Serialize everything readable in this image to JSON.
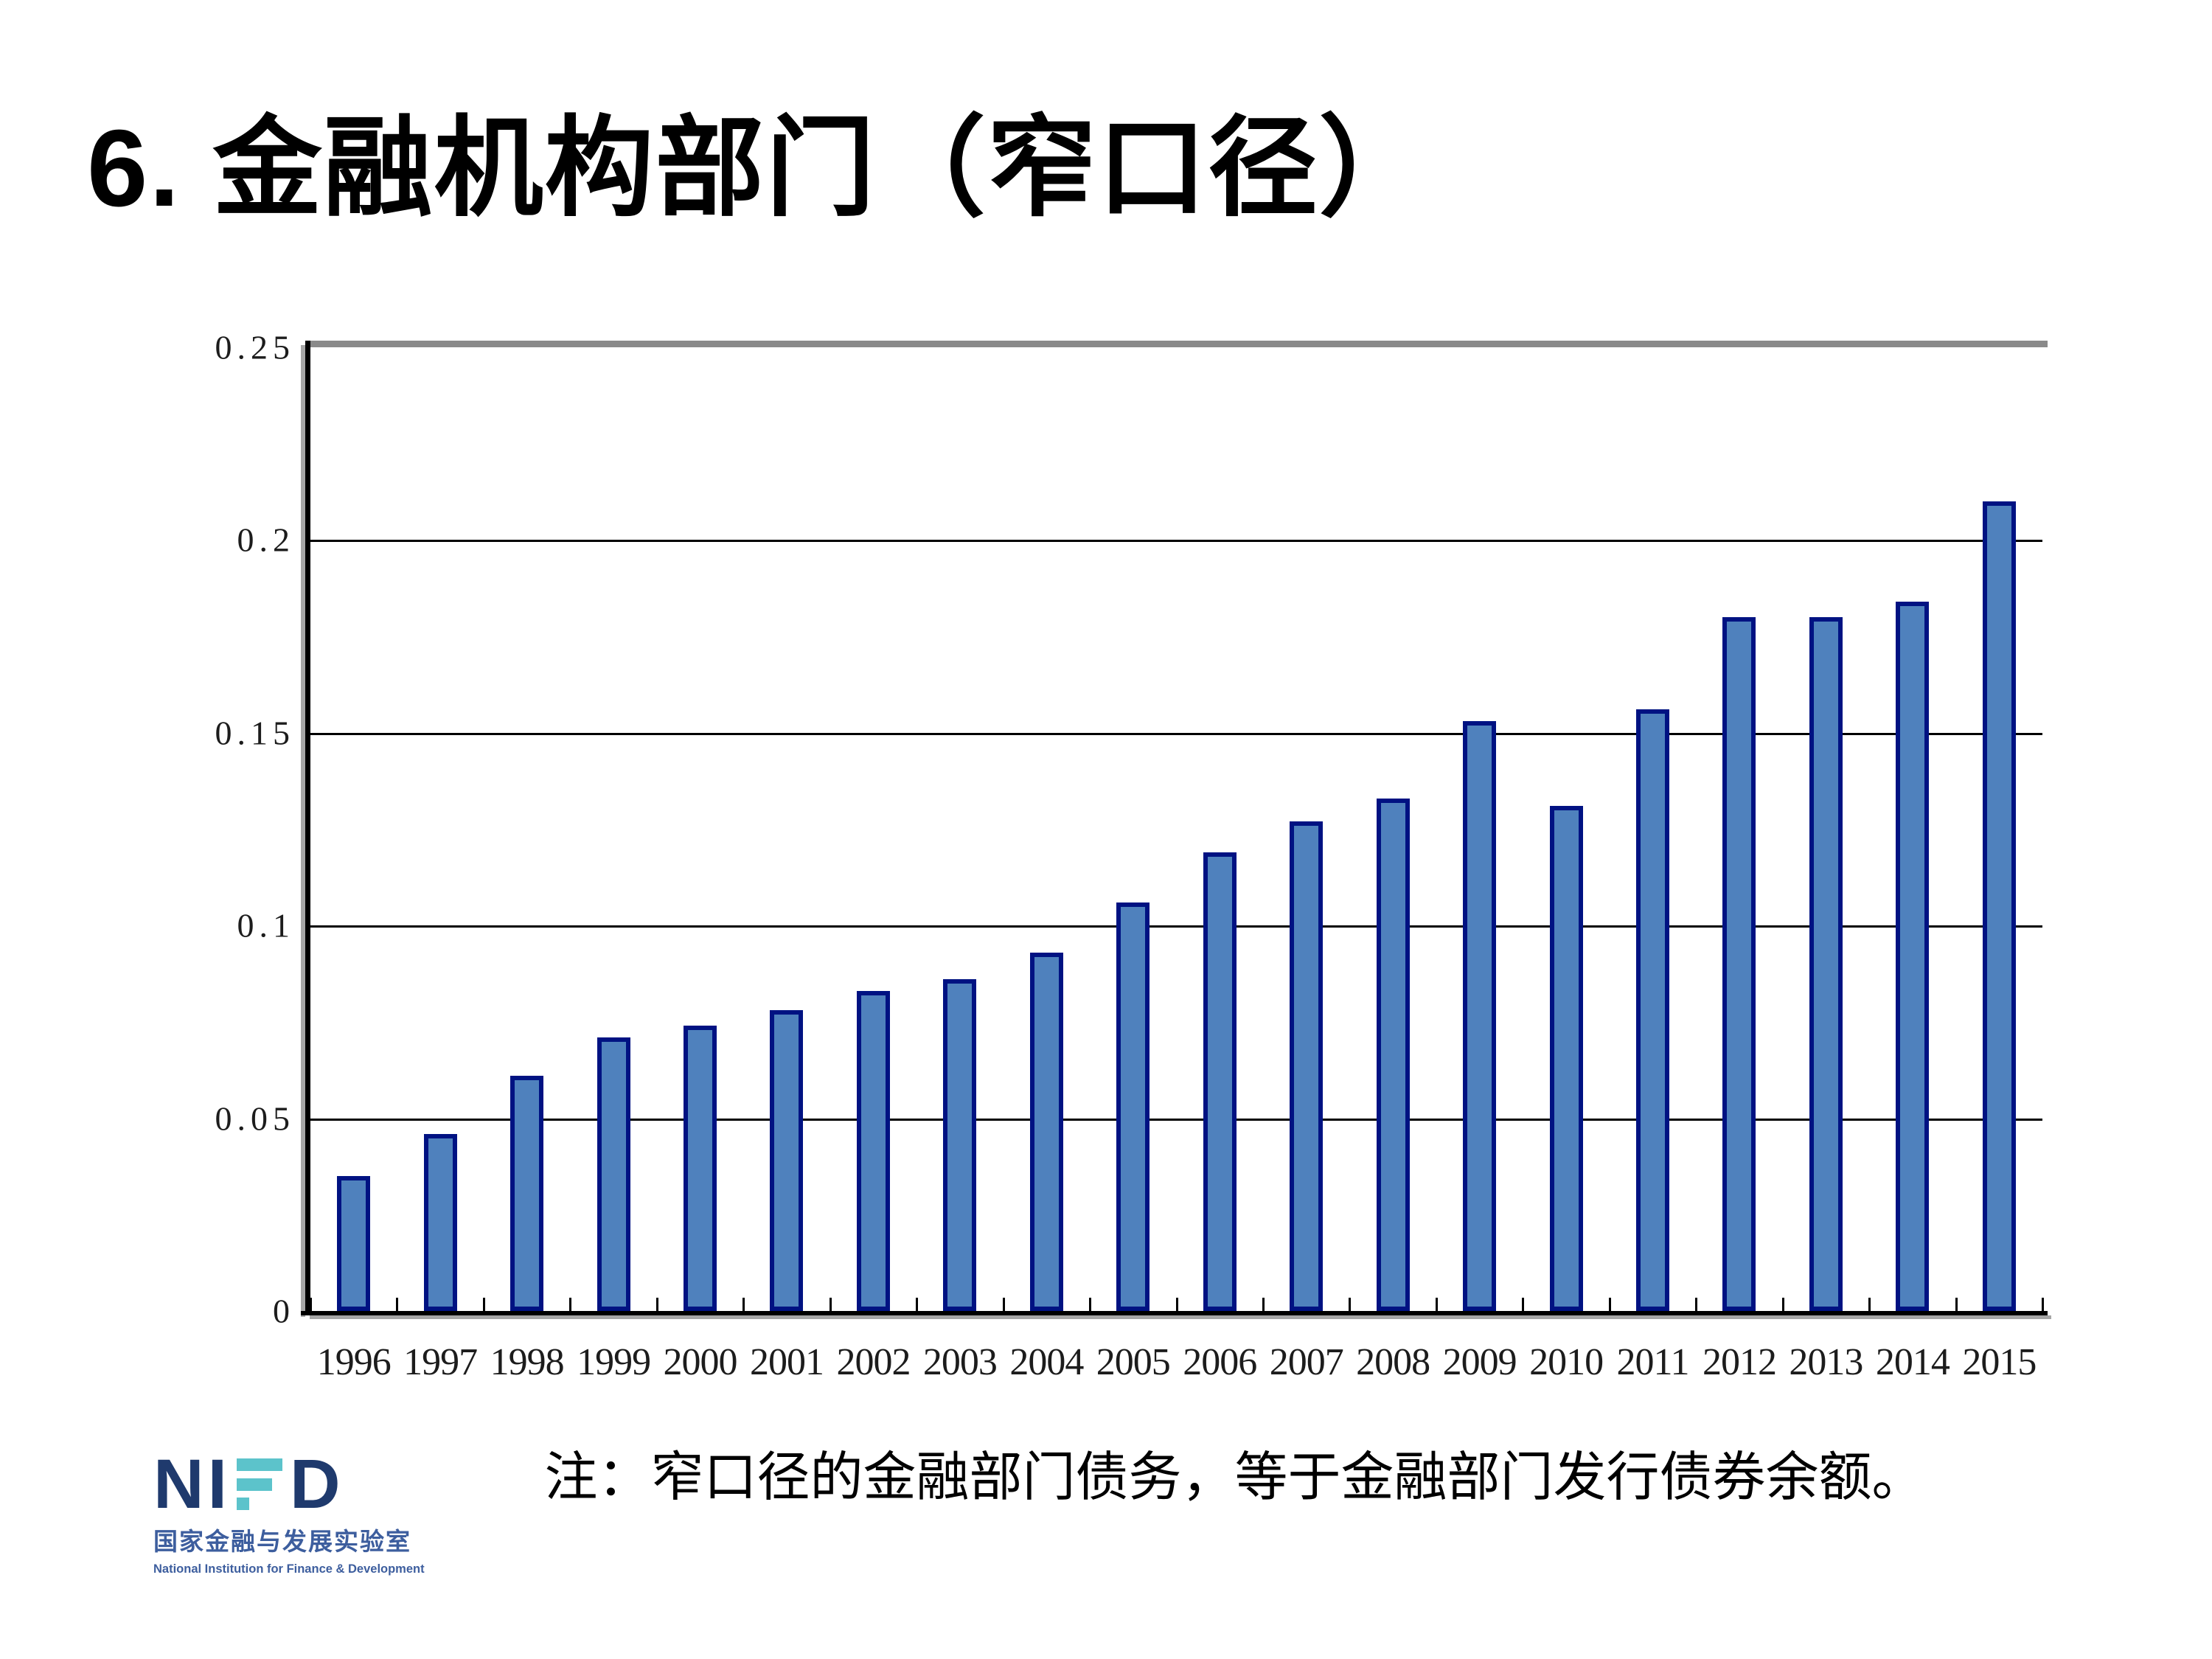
{
  "slide": {
    "title": "6. 金融机构部门（窄口径）",
    "note": "注：窄口径的金融部门债务，等于金融部门发行债券余额。"
  },
  "chart_data": {
    "type": "bar",
    "title": "",
    "xlabel": "",
    "ylabel": "",
    "categories": [
      "1996",
      "1997",
      "1998",
      "1999",
      "2000",
      "2001",
      "2002",
      "2003",
      "2004",
      "2005",
      "2006",
      "2007",
      "2008",
      "2009",
      "2010",
      "2011",
      "2012",
      "2013",
      "2014",
      "2015"
    ],
    "values": [
      0.035,
      0.046,
      0.061,
      0.071,
      0.074,
      0.078,
      0.083,
      0.086,
      0.093,
      0.106,
      0.119,
      0.127,
      0.133,
      0.153,
      0.131,
      0.156,
      0.18,
      0.18,
      0.184,
      0.21
    ],
    "ylim": [
      0,
      0.25
    ],
    "y_ticks": [
      0.25,
      0.2,
      0.15,
      0.1,
      0.05,
      0
    ],
    "y_tick_labels": [
      "0.25",
      "0.2",
      "0.15",
      "0.1",
      "0.05",
      "0"
    ],
    "grid": true,
    "legend": "none",
    "colors": {
      "bar_fill": "#4f81bd",
      "bar_border": "#001282",
      "gridline": "#000000",
      "axis": "#000000",
      "frame_top": "#8a8a8a"
    }
  },
  "logo": {
    "text_left": "NI",
    "text_right": "D",
    "subtitle_cn": "国家金融与发展实验室",
    "subtitle_en": "National Institution for Finance & Development",
    "colors": {
      "navy": "#1f3a6d",
      "teal": "#5cc3cb",
      "blue": "#3d5e9e"
    }
  }
}
